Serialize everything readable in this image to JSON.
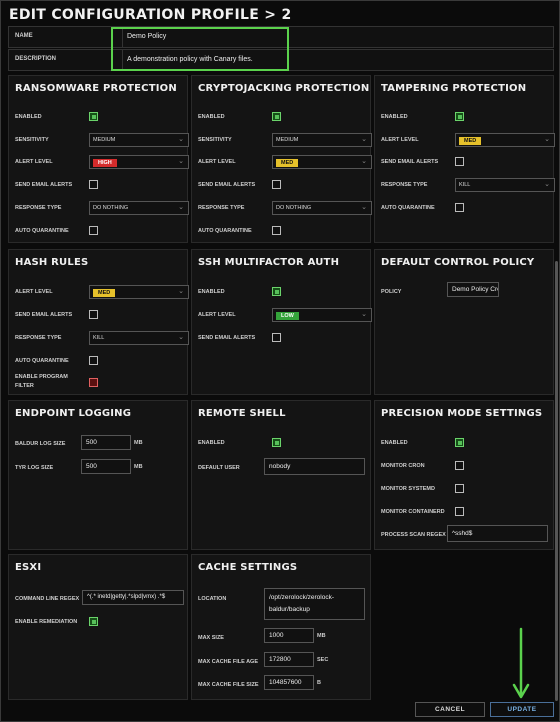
{
  "header": {
    "title": "EDIT CONFIGURATION PROFILE  >  2"
  },
  "form": {
    "name_label": "NAME",
    "name_value": "Demo Policy",
    "description_label": "DESCRIPTION",
    "description_value": "A demonstration policy with Canary files."
  },
  "ransomware": {
    "title": "RANSOMWARE PROTECTION",
    "enabled_label": "ENABLED",
    "sensitivity_label": "SENSITIVITY",
    "sensitivity_value": "MEDIUM",
    "alert_label": "ALERT LEVEL",
    "alert_value": "HIGH",
    "email_label": "SEND EMAIL ALERTS",
    "response_label": "RESPONSE TYPE",
    "response_value": "DO NOTHING",
    "quarantine_label": "AUTO QUARANTINE"
  },
  "cryptojacking": {
    "title": "CRYPTOJACKING PROTECTION",
    "enabled_label": "ENABLED",
    "sensitivity_label": "SENSITIVITY",
    "sensitivity_value": "MEDIUM",
    "alert_label": "ALERT LEVEL",
    "alert_value": "MED",
    "email_label": "SEND EMAIL ALERTS",
    "response_label": "RESPONSE TYPE",
    "response_value": "DO NOTHING",
    "quarantine_label": "AUTO QUARANTINE"
  },
  "tampering": {
    "title": "TAMPERING PROTECTION",
    "enabled_label": "ENABLED",
    "alert_label": "ALERT LEVEL",
    "alert_value": "MED",
    "email_label": "SEND EMAIL ALERTS",
    "response_label": "RESPONSE TYPE",
    "response_value": "KILL",
    "quarantine_label": "AUTO QUARANTINE"
  },
  "hash": {
    "title": "HASH RULES",
    "alert_label": "ALERT LEVEL",
    "alert_value": "MED",
    "email_label": "SEND EMAIL ALERTS",
    "response_label": "RESPONSE TYPE",
    "response_value": "KILL",
    "quarantine_label": "AUTO QUARANTINE",
    "filter_label_1": "ENABLE PROGRAM",
    "filter_label_2": "FILTER"
  },
  "ssh": {
    "title": "SSH MULTIFACTOR AUTH",
    "enabled_label": "ENABLED",
    "alert_label": "ALERT LEVEL",
    "alert_value": "LOW",
    "email_label": "SEND EMAIL ALERTS"
  },
  "default_control": {
    "title": "DEFAULT CONTROL POLICY",
    "policy_label": "POLICY",
    "policy_value": "Demo Policy Creat"
  },
  "endpoint": {
    "title": "ENDPOINT LOGGING",
    "baldur_label": "BALDUR LOG SIZE",
    "baldur_value": "500",
    "baldur_unit": "MB",
    "tyr_label": "TYR LOG SIZE",
    "tyr_value": "500",
    "tyr_unit": "MB"
  },
  "remote_shell": {
    "title": "REMOTE SHELL",
    "enabled_label": "ENABLED",
    "user_label": "DEFAULT USER",
    "user_value": "nobody"
  },
  "precision": {
    "title": "PRECISION MODE SETTINGS",
    "enabled_label": "ENABLED",
    "cron_label": "MONITOR CRON",
    "systemd_label": "MONITOR SYSTEMD",
    "containerd_label": "MONITOR CONTAINERD",
    "regex_label": "PROCESS SCAN REGEX",
    "regex_value": "^sshd$"
  },
  "esxi": {
    "title": "ESXI",
    "cmd_label": "COMMAND LINE REGEX",
    "cmd_value": "^(.* inetd|getty|.*slpd|vmx) .*$",
    "remediation_label": "ENABLE REMEDIATION"
  },
  "cache": {
    "title": "CACHE SETTINGS",
    "location_label": "LOCATION",
    "location_line1": "/opt/zerolock/zerolock-",
    "location_line2": "baldur/backup",
    "max_size_label": "MAX SIZE",
    "max_size_value": "1000",
    "max_size_unit": "MB",
    "max_age_label": "MAX CACHE FILE AGE",
    "max_age_value": "172800",
    "max_age_unit": "SEC",
    "max_file_label": "MAX CACHE FILE SIZE",
    "max_file_value": "104857600",
    "max_file_unit": "B"
  },
  "footer": {
    "cancel_label": "CANCEL",
    "update_label": "UPDATE"
  },
  "colors": {
    "accent_green": "#5bd24d",
    "high": "#d42b2b",
    "med": "#e6c12b",
    "low": "#34a43a",
    "update_blue": "#7ab3e6"
  }
}
